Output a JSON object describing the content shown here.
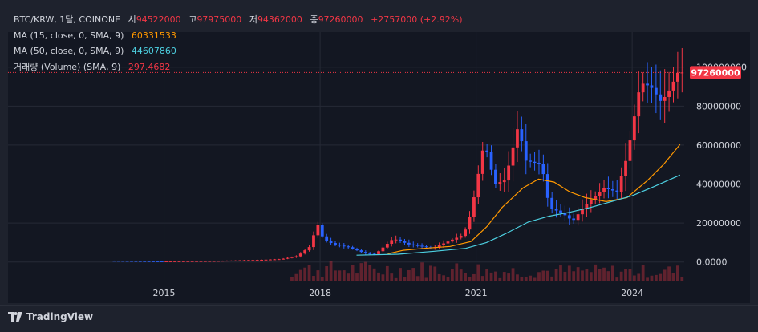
{
  "colors": {
    "background": "#131722",
    "grid": "#262a36",
    "candle_up": "#f23645",
    "candle_down": "#2962ff",
    "ma15": "#ff9800",
    "ma50": "#4dd0e1",
    "volume": "#f23645",
    "price_line": "#f23645",
    "text": "#d1d4dc"
  },
  "legend": {
    "symbol": "BTC/KRW, 1달, COINONE",
    "open_label": "시",
    "open_value": "94522000",
    "high_label": "고",
    "high_value": "97975000",
    "low_label": "저",
    "low_value": "94362000",
    "close_label": "종",
    "close_value": "97260000",
    "change": "+2757000 (+2.92%)",
    "ma15_label": "MA (15, close, 0, SMA, 9)",
    "ma15_value": "60331533",
    "ma50_label": "MA (50, close, 0, SMA, 9)",
    "ma50_value": "44607860",
    "volume_label": "거래량 (Volume) (SMA, 9)",
    "volume_value": "297.4682"
  },
  "price_tag": "97260000",
  "footer": {
    "brand": "TradingView",
    "logo_icon": "tradingview-logo-icon"
  },
  "chart_data": {
    "type": "candlestick",
    "x_axis_labels": [
      "2015",
      "2018",
      "2021",
      "2024"
    ],
    "y_axis_labels": [
      "0.0000",
      "20000000",
      "40000000",
      "60000000",
      "80000000",
      "100000000"
    ],
    "ylim": [
      -10000000,
      118000000
    ],
    "xlim": [
      2012.0,
      2025.0
    ],
    "y_ticks": [
      0,
      20000000,
      40000000,
      60000000,
      80000000,
      100000000
    ],
    "x_ticks": [
      2015.0,
      2018.0,
      2021.0,
      2024.0
    ],
    "last_close": 97260000,
    "series": [
      {
        "name": "Price",
        "anchors": [
          [
            2014.0,
            600000
          ],
          [
            2015.0,
            300000
          ],
          [
            2016.0,
            500000
          ],
          [
            2016.9,
            1100000
          ],
          [
            2017.3,
            1500000
          ],
          [
            2017.6,
            3000000
          ],
          [
            2017.85,
            8000000
          ],
          [
            2017.92,
            14000000
          ],
          [
            2017.97,
            21000000
          ],
          [
            2018.1,
            12000000
          ],
          [
            2018.3,
            9000000
          ],
          [
            2018.6,
            7500000
          ],
          [
            2018.9,
            4500000
          ],
          [
            2019.1,
            4000000
          ],
          [
            2019.45,
            12000000
          ],
          [
            2019.75,
            9000000
          ],
          [
            2020.0,
            8000000
          ],
          [
            2020.2,
            7000000
          ],
          [
            2020.5,
            10500000
          ],
          [
            2020.8,
            14000000
          ],
          [
            2020.95,
            26000000
          ],
          [
            2021.2,
            62000000
          ],
          [
            2021.4,
            40000000
          ],
          [
            2021.6,
            42000000
          ],
          [
            2021.85,
            70000000
          ],
          [
            2022.0,
            52000000
          ],
          [
            2022.3,
            50000000
          ],
          [
            2022.45,
            28000000
          ],
          [
            2022.7,
            25000000
          ],
          [
            2022.9,
            21000000
          ],
          [
            2023.1,
            28000000
          ],
          [
            2023.5,
            38000000
          ],
          [
            2023.75,
            36000000
          ],
          [
            2023.95,
            55000000
          ],
          [
            2024.2,
            92000000
          ],
          [
            2024.4,
            90000000
          ],
          [
            2024.6,
            82000000
          ],
          [
            2024.75,
            88000000
          ],
          [
            2024.92,
            97260000
          ]
        ]
      }
    ],
    "ma15_points": [
      [
        2019.3,
        4200000
      ],
      [
        2019.6,
        6000000
      ],
      [
        2020.0,
        7000000
      ],
      [
        2020.5,
        8000000
      ],
      [
        2020.9,
        10500000
      ],
      [
        2021.2,
        18000000
      ],
      [
        2021.5,
        28000000
      ],
      [
        2021.9,
        38000000
      ],
      [
        2022.2,
        42500000
      ],
      [
        2022.5,
        41000000
      ],
      [
        2022.8,
        36000000
      ],
      [
        2023.1,
        33000000
      ],
      [
        2023.5,
        31000000
      ],
      [
        2023.9,
        33000000
      ],
      [
        2024.3,
        42000000
      ],
      [
        2024.6,
        50000000
      ],
      [
        2024.92,
        60331533
      ]
    ],
    "ma50_points": [
      [
        2018.7,
        3500000
      ],
      [
        2019.5,
        4000000
      ],
      [
        2020.2,
        5500000
      ],
      [
        2020.8,
        7000000
      ],
      [
        2021.2,
        10000000
      ],
      [
        2021.6,
        15000000
      ],
      [
        2022.0,
        20500000
      ],
      [
        2022.4,
        23500000
      ],
      [
        2022.8,
        25500000
      ],
      [
        2023.2,
        28000000
      ],
      [
        2023.6,
        31000000
      ],
      [
        2024.0,
        34000000
      ],
      [
        2024.4,
        38500000
      ],
      [
        2024.92,
        44607860
      ]
    ]
  }
}
